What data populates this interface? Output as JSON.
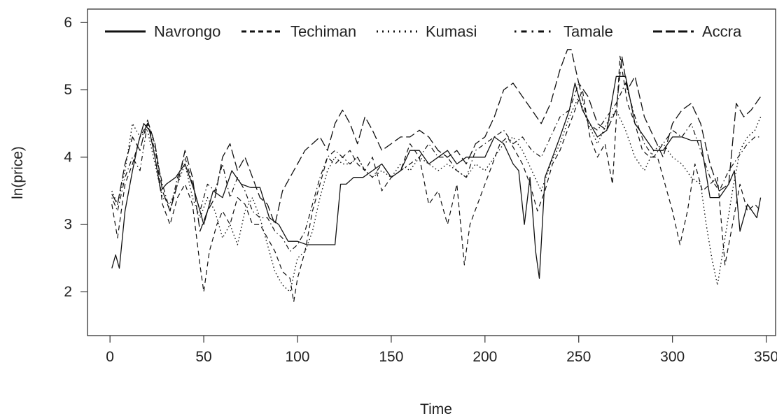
{
  "chart_data": {
    "type": "line",
    "title": "",
    "xlabel": "Time",
    "ylabel": "ln(price)",
    "xlim": [
      -12,
      355
    ],
    "ylim": [
      1.35,
      6.2
    ],
    "xticks": [
      0,
      50,
      100,
      150,
      200,
      250,
      300,
      350
    ],
    "yticks": [
      2,
      3,
      4,
      5,
      6
    ],
    "legend_position": "top",
    "grid": false,
    "series": [
      {
        "name": "Navrongo",
        "style": "solid",
        "x": [
          1,
          3,
          5,
          8,
          12,
          15,
          18,
          21,
          24,
          27,
          30,
          35,
          40,
          45,
          50,
          55,
          60,
          65,
          70,
          75,
          80,
          85,
          90,
          95,
          100,
          105,
          110,
          115,
          120,
          123,
          126,
          130,
          135,
          140,
          145,
          150,
          155,
          160,
          165,
          170,
          175,
          180,
          185,
          190,
          195,
          200,
          205,
          210,
          215,
          218,
          221,
          224,
          227,
          229,
          232,
          236,
          240,
          245,
          248,
          252,
          256,
          260,
          265,
          270,
          275,
          280,
          285,
          290,
          295,
          300,
          305,
          310,
          315,
          320,
          325,
          330,
          333,
          336,
          340,
          345,
          347
        ],
        "values": [
          2.35,
          2.55,
          2.35,
          3.2,
          3.8,
          4.2,
          4.5,
          4.4,
          4.0,
          3.5,
          3.6,
          3.7,
          3.9,
          3.5,
          3.0,
          3.5,
          3.4,
          3.8,
          3.6,
          3.55,
          3.55,
          3.1,
          3.0,
          2.75,
          2.75,
          2.7,
          2.7,
          2.7,
          2.7,
          3.6,
          3.6,
          3.7,
          3.7,
          3.8,
          3.9,
          3.7,
          3.8,
          4.1,
          4.1,
          3.9,
          4.0,
          4.1,
          3.9,
          4.0,
          4.0,
          4.0,
          4.3,
          4.2,
          3.9,
          3.8,
          3.0,
          3.7,
          2.6,
          2.2,
          3.7,
          4.0,
          4.3,
          4.7,
          5.1,
          4.7,
          4.5,
          4.3,
          4.4,
          5.2,
          5.2,
          4.5,
          4.3,
          4.1,
          4.1,
          4.3,
          4.3,
          4.25,
          4.25,
          3.4,
          3.4,
          3.6,
          3.8,
          2.9,
          3.3,
          3.1,
          3.4
        ]
      },
      {
        "name": "Techiman",
        "style": "dashed",
        "x": [
          1,
          4,
          8,
          12,
          16,
          20,
          24,
          28,
          32,
          36,
          40,
          44,
          48,
          50,
          53,
          57,
          60,
          64,
          68,
          72,
          76,
          80,
          84,
          88,
          92,
          96,
          98,
          100,
          104,
          108,
          112,
          116,
          120,
          124,
          128,
          132,
          136,
          140,
          145,
          150,
          155,
          160,
          165,
          170,
          175,
          180,
          185,
          189,
          192,
          196,
          200,
          204,
          208,
          212,
          216,
          220,
          224,
          228,
          232,
          236,
          240,
          244,
          248,
          252,
          256,
          260,
          264,
          268,
          272,
          276,
          280,
          284,
          288,
          292,
          296,
          300,
          304,
          308,
          312,
          316,
          320,
          324,
          328,
          332,
          336,
          340,
          344,
          347
        ],
        "values": [
          3.3,
          2.8,
          3.6,
          3.9,
          4.3,
          4.5,
          4.2,
          3.3,
          3.0,
          3.4,
          3.6,
          3.3,
          2.4,
          2.0,
          2.6,
          3.0,
          3.2,
          3.0,
          3.4,
          3.3,
          3.0,
          3.0,
          2.8,
          2.6,
          2.3,
          2.2,
          1.85,
          2.2,
          2.6,
          3.2,
          3.6,
          4.0,
          3.9,
          4.0,
          4.1,
          3.9,
          3.8,
          4.0,
          3.5,
          3.7,
          3.8,
          4.2,
          4.0,
          3.3,
          3.5,
          3.0,
          3.6,
          2.4,
          3.0,
          3.3,
          3.6,
          3.9,
          4.2,
          4.3,
          4.1,
          3.9,
          3.6,
          3.2,
          3.5,
          3.9,
          4.1,
          4.4,
          4.7,
          5.0,
          4.3,
          4.0,
          4.2,
          3.6,
          5.5,
          4.8,
          4.5,
          4.1,
          4.0,
          4.0,
          3.6,
          3.2,
          2.7,
          3.2,
          3.9,
          3.5,
          3.6,
          3.7,
          2.4,
          3.0,
          3.6,
          3.2,
          3.3,
          3.2
        ]
      },
      {
        "name": "Kumasi",
        "style": "dotted",
        "x": [
          1,
          4,
          8,
          12,
          16,
          20,
          24,
          28,
          32,
          36,
          40,
          44,
          48,
          52,
          56,
          60,
          64,
          68,
          72,
          76,
          80,
          84,
          88,
          92,
          96,
          100,
          104,
          108,
          112,
          116,
          120,
          124,
          128,
          132,
          136,
          140,
          145,
          150,
          155,
          160,
          165,
          170,
          175,
          180,
          185,
          190,
          195,
          200,
          205,
          210,
          215,
          220,
          225,
          230,
          235,
          240,
          245,
          250,
          255,
          260,
          265,
          270,
          275,
          280,
          285,
          290,
          295,
          300,
          305,
          310,
          315,
          318,
          321,
          324,
          328,
          332,
          336,
          340,
          344,
          347
        ],
        "values": [
          3.5,
          3.3,
          3.8,
          4.5,
          4.3,
          4.4,
          3.9,
          3.4,
          3.3,
          3.6,
          3.9,
          3.4,
          3.1,
          3.4,
          3.2,
          2.8,
          3.0,
          2.7,
          3.2,
          3.4,
          3.1,
          2.7,
          2.3,
          2.1,
          2.0,
          2.5,
          2.6,
          2.9,
          3.4,
          3.8,
          4.0,
          3.9,
          3.9,
          4.0,
          3.8,
          3.7,
          3.8,
          3.7,
          3.9,
          3.8,
          4.0,
          3.9,
          3.8,
          3.9,
          3.8,
          3.7,
          3.9,
          3.8,
          4.0,
          4.2,
          4.3,
          4.1,
          3.8,
          3.5,
          3.9,
          4.2,
          4.6,
          4.9,
          4.5,
          4.2,
          4.5,
          4.7,
          4.4,
          4.0,
          3.8,
          4.1,
          4.2,
          4.0,
          3.9,
          3.7,
          3.6,
          3.0,
          2.5,
          2.1,
          2.8,
          3.5,
          4.1,
          4.3,
          4.4,
          4.6
        ]
      },
      {
        "name": "Tamale",
        "style": "dotdash",
        "x": [
          1,
          4,
          8,
          12,
          16,
          20,
          24,
          28,
          32,
          36,
          40,
          44,
          48,
          52,
          56,
          60,
          64,
          68,
          72,
          76,
          80,
          84,
          88,
          92,
          96,
          100,
          104,
          108,
          112,
          116,
          120,
          124,
          128,
          132,
          136,
          140,
          145,
          150,
          155,
          160,
          165,
          170,
          175,
          180,
          185,
          190,
          195,
          200,
          205,
          210,
          215,
          220,
          225,
          230,
          235,
          240,
          245,
          250,
          255,
          260,
          265,
          270,
          275,
          280,
          285,
          290,
          295,
          300,
          305,
          310,
          315,
          320,
          325,
          330,
          335,
          340,
          344,
          347
        ],
        "values": [
          3.4,
          3.2,
          3.7,
          4.0,
          3.8,
          4.5,
          4.1,
          3.6,
          3.2,
          3.7,
          4.0,
          3.6,
          3.2,
          3.6,
          3.5,
          3.9,
          3.4,
          3.7,
          3.5,
          3.2,
          3.1,
          3.1,
          2.9,
          2.8,
          2.6,
          2.7,
          2.9,
          3.3,
          3.7,
          4.0,
          4.1,
          4.0,
          3.9,
          4.0,
          3.8,
          3.7,
          3.9,
          3.7,
          3.8,
          3.9,
          4.0,
          4.2,
          4.0,
          4.0,
          3.8,
          3.7,
          4.1,
          4.2,
          4.3,
          4.4,
          4.2,
          4.3,
          4.1,
          4.0,
          4.3,
          4.6,
          4.7,
          5.1,
          4.5,
          4.4,
          4.6,
          4.8,
          5.1,
          4.6,
          4.2,
          4.0,
          4.2,
          4.4,
          4.3,
          4.5,
          4.1,
          3.7,
          3.5,
          3.8,
          4.0,
          4.2,
          4.3,
          4.3
        ]
      },
      {
        "name": "Accra",
        "style": "longdash",
        "x": [
          1,
          4,
          8,
          12,
          16,
          20,
          24,
          28,
          32,
          36,
          40,
          44,
          48,
          52,
          56,
          60,
          64,
          68,
          72,
          76,
          80,
          84,
          88,
          92,
          96,
          100,
          104,
          108,
          112,
          116,
          120,
          124,
          128,
          132,
          136,
          140,
          145,
          150,
          155,
          160,
          165,
          170,
          175,
          180,
          185,
          190,
          195,
          200,
          205,
          210,
          215,
          220,
          225,
          230,
          235,
          240,
          244,
          246,
          250,
          255,
          260,
          265,
          270,
          273,
          276,
          280,
          285,
          290,
          295,
          300,
          305,
          310,
          315,
          320,
          325,
          330,
          334,
          338,
          342,
          347
        ],
        "values": [
          3.45,
          3.3,
          3.9,
          4.3,
          4.1,
          4.55,
          4.2,
          3.5,
          3.2,
          3.6,
          4.1,
          3.7,
          2.9,
          3.2,
          3.4,
          4.0,
          4.2,
          3.8,
          4.0,
          3.7,
          3.4,
          3.3,
          3.0,
          3.5,
          3.7,
          3.9,
          4.1,
          4.2,
          4.3,
          4.1,
          4.5,
          4.7,
          4.5,
          4.2,
          4.6,
          4.4,
          4.1,
          4.2,
          4.3,
          4.3,
          4.4,
          4.3,
          4.1,
          4.0,
          4.1,
          3.9,
          4.2,
          4.3,
          4.6,
          5.0,
          5.1,
          4.9,
          4.7,
          4.5,
          4.8,
          5.3,
          5.6,
          5.6,
          5.1,
          4.9,
          4.5,
          4.4,
          4.7,
          5.5,
          5.0,
          5.2,
          4.6,
          4.3,
          4.0,
          4.5,
          4.7,
          4.8,
          4.5,
          3.9,
          3.5,
          3.6,
          4.8,
          4.6,
          4.7,
          4.9
        ]
      }
    ]
  }
}
